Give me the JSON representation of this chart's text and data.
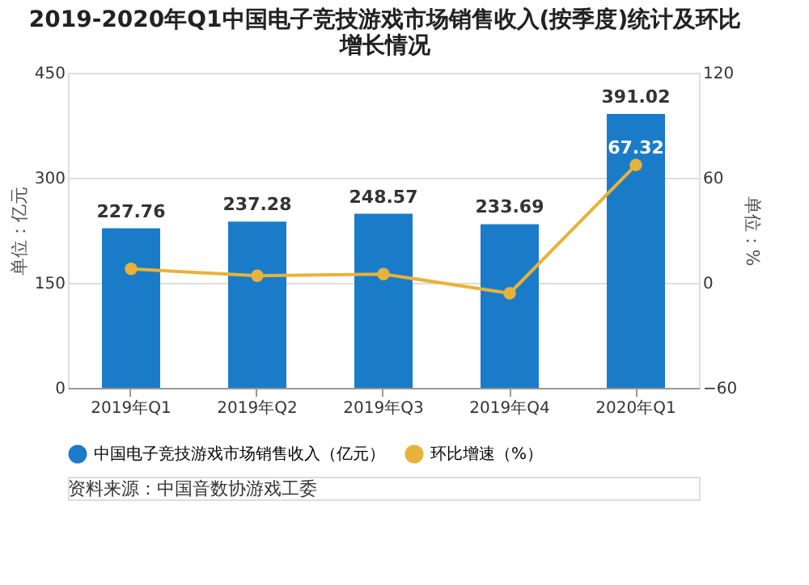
{
  "chart_data": {
    "type": "bar",
    "title": [
      "2019-2020年Q1中国电子竞技游戏市场销售收入(按季度)统计及环比",
      "增长情况"
    ],
    "categories": [
      "2019年Q1",
      "2019年Q2",
      "2019年Q3",
      "2019年Q4",
      "2020年Q1"
    ],
    "ylabel": "单位：亿元",
    "y2label": "单位：%",
    "ylim": [
      0,
      450
    ],
    "yticks": [
      0,
      150,
      300,
      450
    ],
    "y2lim": [
      -60,
      120
    ],
    "y2ticks": [
      -60,
      0,
      60,
      120
    ],
    "series": [
      {
        "name": "中国电子竞技游戏市场销售收入（亿元）",
        "color": "#1a7cc9",
        "values": [
          227.76,
          237.28,
          248.57,
          233.69,
          391.02
        ],
        "data_labels": true
      },
      {
        "name": "环比增速（%）",
        "type": "line",
        "axis": "y2",
        "color": "#e8b23a",
        "marker": "circle",
        "values": [
          8,
          4,
          5,
          -6,
          67.32
        ],
        "value_labels": [
          null,
          null,
          null,
          null,
          "67.32"
        ]
      }
    ],
    "grid": "y",
    "legend": "bottom",
    "annotations": [
      "资料来源：中国音数协游戏工委"
    ]
  }
}
